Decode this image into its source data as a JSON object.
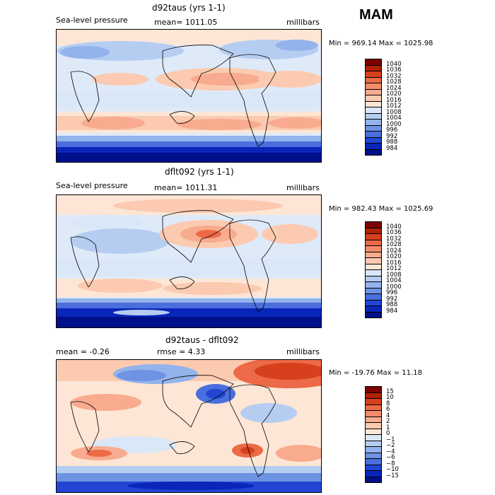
{
  "season": "MAM",
  "panels": [
    {
      "title": "d92taus (yrs 1-1)",
      "left_label": "Sea-level pressure",
      "center_label": "mean= 1011.05",
      "right_label": "millibars",
      "minmax": "Min = 969.14 Max = 1025.98"
    },
    {
      "title": "dflt092 (yrs 1-1)",
      "left_label": "Sea-level pressure",
      "center_label": "mean= 1011.31",
      "right_label": "millibars",
      "minmax": "Min = 982.43 Max = 1025.69"
    },
    {
      "title": "d92taus - dflt092",
      "left_label": "mean =   -0.26",
      "center_label": "rmse =     4.33",
      "right_label": "millibars",
      "minmax": "Min = -19.76 Max =   11.18"
    }
  ],
  "colorbars": [
    {
      "labels": [
        "1040",
        "1036",
        "1032",
        "1028",
        "1024",
        "1020",
        "1016",
        "1012",
        "1008",
        "1004",
        "1000",
        "996",
        "992",
        "988",
        "984"
      ],
      "colors": [
        "#7d0000",
        "#b22205",
        "#d6401c",
        "#ec6a47",
        "#f48b6a",
        "#f8ab8e",
        "#fbcab0",
        "#fde6d5",
        "#d9e7f8",
        "#b6cdf2",
        "#93b3ec",
        "#6e93e3",
        "#4a6fdc",
        "#2246d3",
        "#0a25b9",
        "#00108a"
      ]
    },
    {
      "labels": [
        "1040",
        "1036",
        "1032",
        "1028",
        "1024",
        "1020",
        "1016",
        "1012",
        "1008",
        "1004",
        "1000",
        "996",
        "992",
        "988",
        "984"
      ],
      "colors": [
        "#7d0000",
        "#b22205",
        "#d6401c",
        "#ec6a47",
        "#f48b6a",
        "#f8ab8e",
        "#fbcab0",
        "#fde6d5",
        "#d9e7f8",
        "#b6cdf2",
        "#93b3ec",
        "#6e93e3",
        "#4a6fdc",
        "#2246d3",
        "#0a25b9",
        "#00108a"
      ]
    },
    {
      "labels": [
        "15",
        "10",
        "8",
        "6",
        "4",
        "2",
        "1",
        "0",
        "−1",
        "−2",
        "−4",
        "−6",
        "−8",
        "−10",
        "−15"
      ],
      "colors": [
        "#7d0000",
        "#b22205",
        "#d6401c",
        "#ec6a47",
        "#f48b6a",
        "#f8ab8e",
        "#fbcab0",
        "#fde6d5",
        "#d9e7f8",
        "#b6cdf2",
        "#93b3ec",
        "#6e93e3",
        "#4a6fdc",
        "#2246d3",
        "#0a25b9",
        "#00108a"
      ]
    }
  ]
}
